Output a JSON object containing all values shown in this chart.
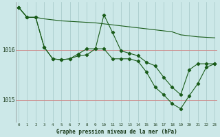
{
  "title": "Graphe pression niveau de la mer (hPa)",
  "background_color": "#cce8e8",
  "grid_color_v": "#aacccc",
  "grid_color_h": "#cc8888",
  "line_color": "#1a5c1a",
  "x_ticks": [
    0,
    1,
    2,
    3,
    4,
    5,
    6,
    7,
    8,
    9,
    10,
    11,
    12,
    13,
    14,
    15,
    16,
    17,
    18,
    19,
    20,
    21,
    22,
    23
  ],
  "y_ticks": [
    1015,
    1016
  ],
  "ylim": [
    1014.55,
    1016.95
  ],
  "xlim": [
    -0.3,
    23.3
  ],
  "line1_no_marker": [
    1016.85,
    1016.65,
    1016.65,
    1016.62,
    1016.6,
    1016.58,
    1016.57,
    1016.56,
    1016.55,
    1016.54,
    1016.52,
    1016.5,
    1016.48,
    1016.46,
    1016.44,
    1016.42,
    1016.4,
    1016.38,
    1016.36,
    1016.3,
    1016.28,
    1016.26,
    1016.25,
    1016.24
  ],
  "line2": [
    1016.85,
    1016.65,
    1016.65,
    1016.05,
    1015.82,
    1015.8,
    1015.82,
    1015.88,
    1015.9,
    1016.02,
    1016.7,
    1016.35,
    1015.98,
    1015.93,
    1015.88,
    1015.75,
    1015.68,
    1015.45,
    1015.25,
    1015.1,
    1015.6,
    1015.72,
    1015.72,
    1015.72
  ],
  "line3": [
    1016.85,
    1016.65,
    1016.65,
    1016.05,
    1015.82,
    1015.8,
    1015.82,
    1015.92,
    1016.02,
    1016.02,
    1016.02,
    1015.82,
    1015.82,
    1015.82,
    1015.77,
    1015.55,
    1015.25,
    1015.1,
    1014.92,
    1014.82,
    1015.08,
    1015.32,
    1015.65,
    1015.72
  ]
}
